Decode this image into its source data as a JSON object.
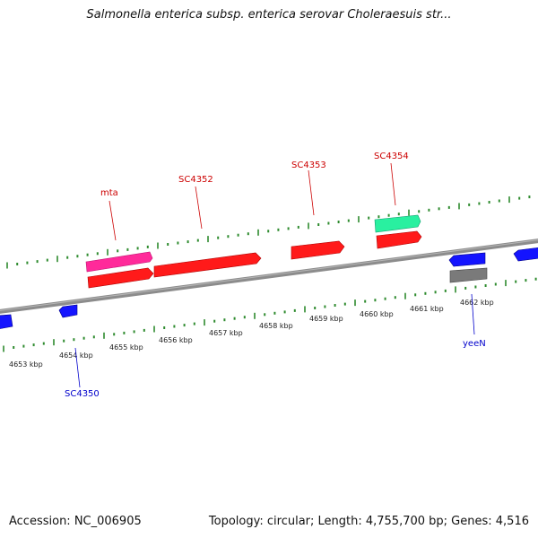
{
  "title": "Salmonella enterica subsp. enterica serovar Choleraesuis str...",
  "footer": {
    "accession": "Accession: NC_006905",
    "summary": "Topology: circular; Length: 4,755,700 bp; Genes: 4,516"
  },
  "colors": {
    "background": "#ffffff",
    "backbone": "#8c8c8c",
    "tick": "#2e8b2e",
    "cds": "#ff1a1a",
    "pseudo_pink": "#ff2a9a",
    "rna_teal": "#29f0a0",
    "reverse_blue": "#1414ff",
    "grey_feature": "#7a7a7a",
    "forward_label": "#cc0000",
    "reverse_label": "#0000cc"
  },
  "kbp_labels": [
    "4653 kbp",
    "4654 kbp",
    "4655 kbp",
    "4656 kbp",
    "4657 kbp",
    "4658 kbp",
    "4659 kbp",
    "4660 kbp",
    "4661 kbp",
    "4662 kbp"
  ],
  "gene_labels": [
    {
      "text": "mta",
      "strand": "forward"
    },
    {
      "text": "SC4352",
      "strand": "forward"
    },
    {
      "text": "SC4353",
      "strand": "forward"
    },
    {
      "text": "SC4354",
      "strand": "forward"
    },
    {
      "text": "yeeN",
      "strand": "reverse"
    },
    {
      "text": "SC4350",
      "strand": "reverse"
    }
  ]
}
